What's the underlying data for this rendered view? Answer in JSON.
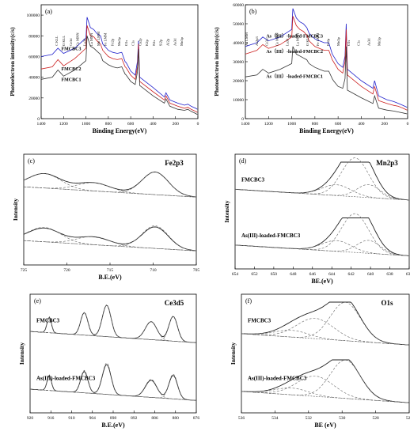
{
  "chart_data": [
    {
      "panel": "(a)",
      "type": "line",
      "xlabel": "Binding Energy(eV)",
      "ylabel": "Photoelectron intensity(c/s)",
      "xlim": [
        1400,
        0
      ],
      "ylim": [
        0,
        110000
      ],
      "x_ticks": [
        "1400",
        "1200",
        "1000",
        "800",
        "600",
        "400",
        "200",
        "0"
      ],
      "y_ticks": [
        "0",
        "20000",
        "40000",
        "60000",
        "80000",
        "100000"
      ],
      "series": [
        {
          "name": "FMCBC3",
          "color": "#2020cc",
          "x": [
            1400,
            1300,
            1250,
            1200,
            1100,
            1000,
            990,
            960,
            930,
            900,
            870,
            850,
            800,
            760,
            720,
            680,
            650,
            640,
            600,
            560,
            540,
            530,
            520,
            400,
            300,
            285,
            250,
            180,
            120,
            90,
            60,
            40,
            20,
            5
          ],
          "y": [
            60000,
            62000,
            68000,
            63000,
            68000,
            78000,
            98000,
            88000,
            86000,
            82000,
            80000,
            72000,
            66000,
            64000,
            63000,
            64000,
            55000,
            54000,
            46000,
            42000,
            55000,
            75000,
            40000,
            30000,
            21000,
            25000,
            18000,
            15000,
            13000,
            14000,
            12000,
            11000,
            10000,
            9000
          ]
        },
        {
          "name": "FMCBC2",
          "color": "#cc2020",
          "x": [
            1400,
            1300,
            1250,
            1200,
            1100,
            1000,
            990,
            960,
            930,
            900,
            870,
            850,
            800,
            760,
            720,
            680,
            650,
            640,
            600,
            560,
            540,
            530,
            520,
            400,
            300,
            285,
            250,
            180,
            120,
            90,
            60,
            40,
            20,
            5
          ],
          "y": [
            48000,
            50000,
            57000,
            51000,
            58000,
            68000,
            90000,
            80000,
            79000,
            75000,
            72000,
            66000,
            60000,
            58000,
            57000,
            58000,
            50000,
            49000,
            42000,
            38000,
            50000,
            72000,
            36000,
            26000,
            18000,
            22000,
            15000,
            12000,
            10000,
            11000,
            9000,
            8000,
            7000,
            6000
          ]
        },
        {
          "name": "FMCBC1",
          "color": "#333333",
          "x": [
            1400,
            1300,
            1250,
            1200,
            1100,
            1000,
            990,
            960,
            930,
            900,
            870,
            850,
            800,
            760,
            720,
            680,
            650,
            640,
            600,
            560,
            540,
            530,
            520,
            400,
            300,
            285,
            250,
            180,
            120,
            90,
            60,
            40,
            20,
            5
          ],
          "y": [
            38000,
            40000,
            47000,
            41000,
            47000,
            56000,
            80000,
            70000,
            68000,
            65000,
            62000,
            56000,
            52000,
            50000,
            49000,
            50000,
            43000,
            42000,
            36000,
            33000,
            45000,
            67000,
            32000,
            22000,
            15000,
            19000,
            12000,
            9000,
            8000,
            9000,
            7000,
            6000,
            5000,
            4000
          ]
        }
      ],
      "annotations": [
        "C KLL",
        "O KLL",
        "Ce3d",
        "Ce MNN",
        "La3d",
        "La MNN",
        "Mn LMM",
        "Fe LMM",
        "Fe2p",
        "Mn2p",
        "O1s",
        "C1s",
        "Ca2p",
        "K2p",
        "N1s",
        "Si2p",
        "Al2p",
        "As3d",
        "Mn3p"
      ]
    },
    {
      "panel": "(b)",
      "type": "line",
      "xlabel": "Binding Energy(eV)",
      "ylabel": "Photoelectron intensity(c/s)",
      "xlim": [
        1400,
        0
      ],
      "ylim": [
        0,
        60000
      ],
      "x_ticks": [
        "1400",
        "1200",
        "1000",
        "800",
        "600",
        "400",
        "200",
        "0"
      ],
      "y_ticks": [
        "0",
        "10000",
        "20000",
        "30000",
        "40000",
        "50000",
        "60000"
      ],
      "series": [
        {
          "name": "As（III）-loaded-FMCBC3",
          "color": "#2020cc",
          "x": [
            1400,
            1300,
            1250,
            1200,
            1100,
            1000,
            990,
            960,
            930,
            900,
            870,
            850,
            800,
            760,
            720,
            680,
            650,
            640,
            600,
            560,
            540,
            530,
            520,
            400,
            300,
            285,
            250,
            180,
            120,
            80,
            40,
            5
          ],
          "y": [
            38000,
            40000,
            43000,
            41000,
            43000,
            47000,
            58000,
            53000,
            51000,
            50000,
            48000,
            45000,
            42000,
            41000,
            40000,
            40000,
            34000,
            33000,
            29000,
            27000,
            33000,
            50000,
            26000,
            20000,
            16000,
            20000,
            12000,
            10000,
            9000,
            8000,
            7000,
            6000
          ]
        },
        {
          "name": "As（III）-loaded-FMCBC2",
          "color": "#cc2020",
          "x": [
            1400,
            1300,
            1250,
            1200,
            1100,
            1000,
            990,
            960,
            930,
            900,
            870,
            850,
            800,
            760,
            720,
            680,
            650,
            640,
            600,
            560,
            540,
            530,
            520,
            400,
            300,
            285,
            250,
            180,
            120,
            80,
            40,
            5
          ],
          "y": [
            34000,
            36000,
            39000,
            37000,
            39000,
            43000,
            54000,
            49000,
            47000,
            46000,
            44000,
            41000,
            38000,
            37000,
            36000,
            36000,
            31000,
            30000,
            26000,
            24000,
            30000,
            47000,
            23000,
            17000,
            13000,
            17000,
            9500,
            8000,
            7000,
            6500,
            5500,
            4500
          ]
        },
        {
          "name": "As（III）-loaded-FMCBC1",
          "color": "#333333",
          "x": [
            1400,
            1300,
            1250,
            1200,
            1100,
            1000,
            990,
            960,
            930,
            900,
            870,
            850,
            800,
            760,
            720,
            680,
            650,
            640,
            600,
            560,
            540,
            530,
            520,
            400,
            300,
            285,
            250,
            180,
            120,
            80,
            40,
            5
          ],
          "y": [
            22000,
            23000,
            26000,
            24000,
            26000,
            29000,
            38000,
            34000,
            33000,
            32000,
            31000,
            29000,
            27000,
            26000,
            25000,
            25000,
            21000,
            20000,
            17000,
            16000,
            21000,
            38000,
            15000,
            11000,
            8000,
            12000,
            5500,
            4500,
            4000,
            3500,
            3000,
            2500
          ]
        }
      ],
      "annotations": [
        "As LMM",
        "As2p3",
        "Ce3d",
        "Ce MNN",
        "La3d",
        "La MNN",
        "O KLL",
        "Fe LMM",
        "Fe2p",
        "Mn2p",
        "O1s",
        "C1s",
        "As3d",
        "Mn3p"
      ]
    },
    {
      "panel": "(c)",
      "title": "Fe2p3",
      "type": "line",
      "xlabel": "B.E.(eV)",
      "ylabel": "Intensity",
      "xlim": [
        727,
        706
      ],
      "x_ticks": [
        "725",
        "720",
        "715",
        "710",
        "705"
      ],
      "top_label": "",
      "bottom_label": ""
    },
    {
      "panel": "(d)",
      "title": "Mn2p3",
      "type": "line",
      "xlabel": "BE.(eV)",
      "ylabel": "Intensity",
      "xlim": [
        654,
        636
      ],
      "x_ticks": [
        "654",
        "652",
        "650",
        "648",
        "646",
        "644",
        "642",
        "640",
        "638",
        "636"
      ],
      "top_label": "FMCBC3",
      "bottom_label": "As(III)-loaded-FMCBC3"
    },
    {
      "panel": "(e)",
      "title": "Ce3d5",
      "type": "line",
      "xlabel": "B.E.(eV)",
      "ylabel": "Intensity",
      "xlim": [
        922,
        876
      ],
      "x_ticks": [
        "920",
        "916",
        "910",
        "904",
        "898",
        "892",
        "886",
        "880",
        "876"
      ],
      "top_label": "FMCBC3",
      "bottom_label": "As(III)-loaded-FMCBC3"
    },
    {
      "panel": "(f)",
      "title": "O1s",
      "type": "line",
      "xlabel": "BE (eV)",
      "ylabel": "Intensity",
      "xlim": [
        536,
        526
      ],
      "x_ticks": [
        "536",
        "534",
        "532",
        "530",
        "528",
        "526"
      ],
      "top_label": "FMCBC3",
      "bottom_label": "As(III)-loaded-FMCBC3"
    }
  ]
}
